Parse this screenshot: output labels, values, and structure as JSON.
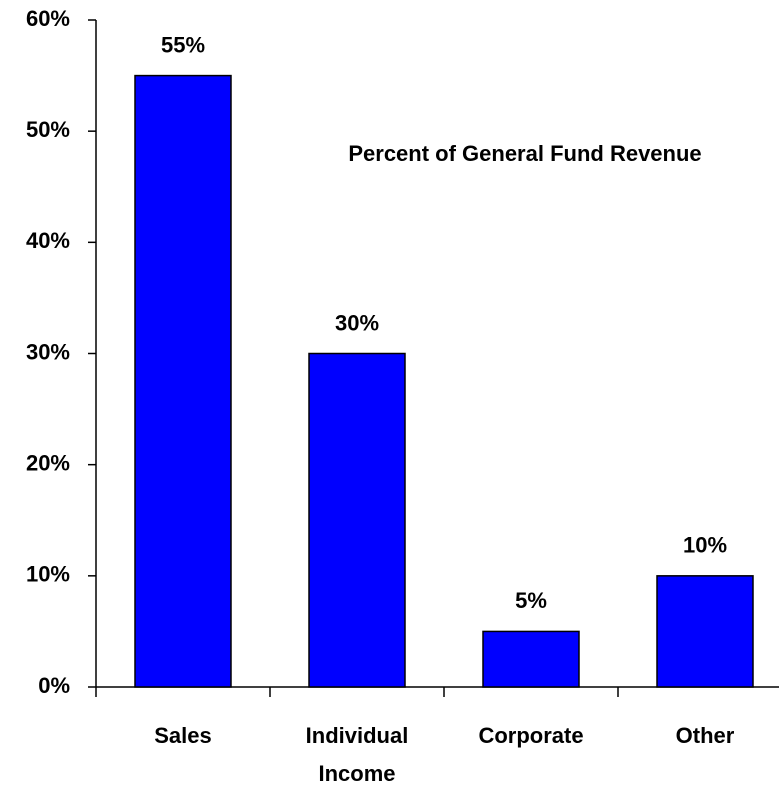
{
  "chart_data": {
    "type": "bar",
    "title": "Percent of General Fund Revenue",
    "categories": [
      "Sales",
      "Individual Income",
      "Corporate",
      "Other"
    ],
    "values": [
      55,
      30,
      5,
      10
    ],
    "value_labels": [
      "55%",
      "30%",
      "5%",
      "10%"
    ],
    "color": "#0000ff",
    "ylim": [
      0,
      60
    ],
    "yticks": [
      {
        "value": 0,
        "label": "0%"
      },
      {
        "value": 10,
        "label": "10%"
      },
      {
        "value": 20,
        "label": "20%"
      },
      {
        "value": 30,
        "label": "30%"
      },
      {
        "value": 40,
        "label": "40%"
      },
      {
        "value": 50,
        "label": "50%"
      },
      {
        "value": 60,
        "label": "60%"
      }
    ],
    "grid": false
  }
}
